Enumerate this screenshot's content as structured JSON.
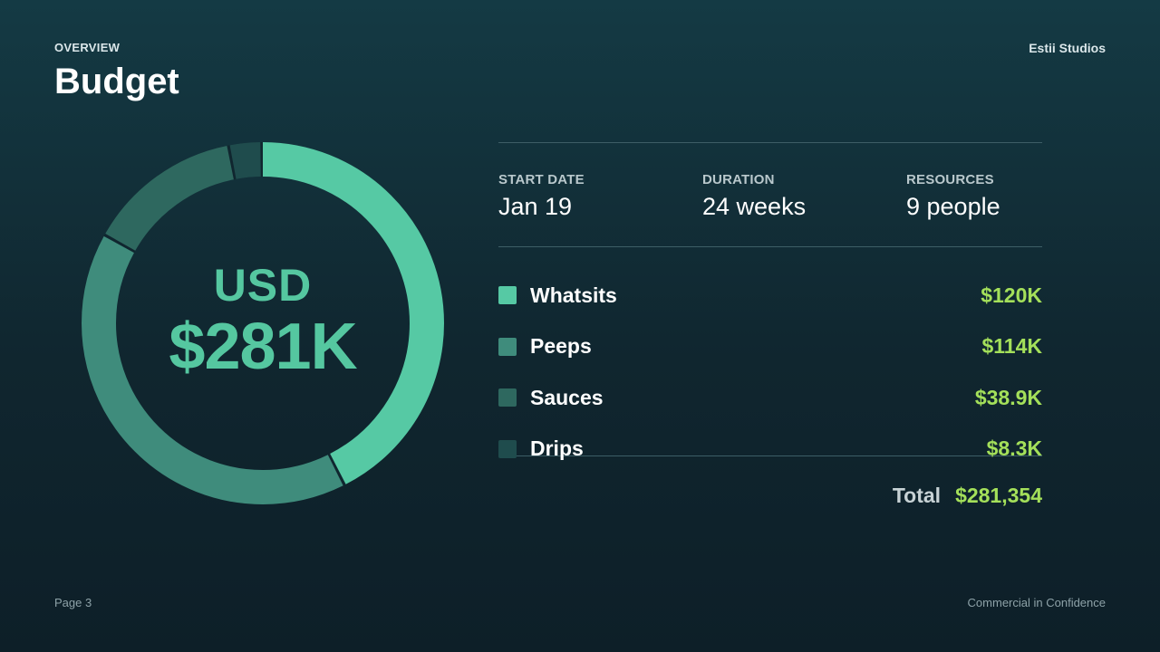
{
  "header": {
    "eyebrow": "OVERVIEW",
    "title": "Budget",
    "brand": "Estii Studios"
  },
  "summary": {
    "currency": "USD",
    "total_short": "$281K"
  },
  "meta": [
    {
      "label": "START DATE",
      "value": "Jan 19"
    },
    {
      "label": "DURATION",
      "value": "24 weeks"
    },
    {
      "label": "RESOURCES",
      "value": "9 people"
    }
  ],
  "total": {
    "label": "Total",
    "value": "$281,354"
  },
  "footer": {
    "page": "Page 3",
    "confidentiality": "Commercial in Confidence"
  },
  "colors": {
    "accent": "#a4e05a",
    "donut_track": "#10262f"
  },
  "chart_data": {
    "type": "pie",
    "categories": [
      "Whatsits",
      "Peeps",
      "Sauces",
      "Drips"
    ],
    "values": [
      120,
      114,
      38.9,
      8.3
    ],
    "value_labels": [
      "$120K",
      "$114K",
      "$38.9K",
      "$8.3K"
    ],
    "unit": "USD thousands",
    "colors": [
      "#56c9a4",
      "#3f8c7c",
      "#2e685f",
      "#1f4c4d"
    ],
    "style": "donut"
  }
}
